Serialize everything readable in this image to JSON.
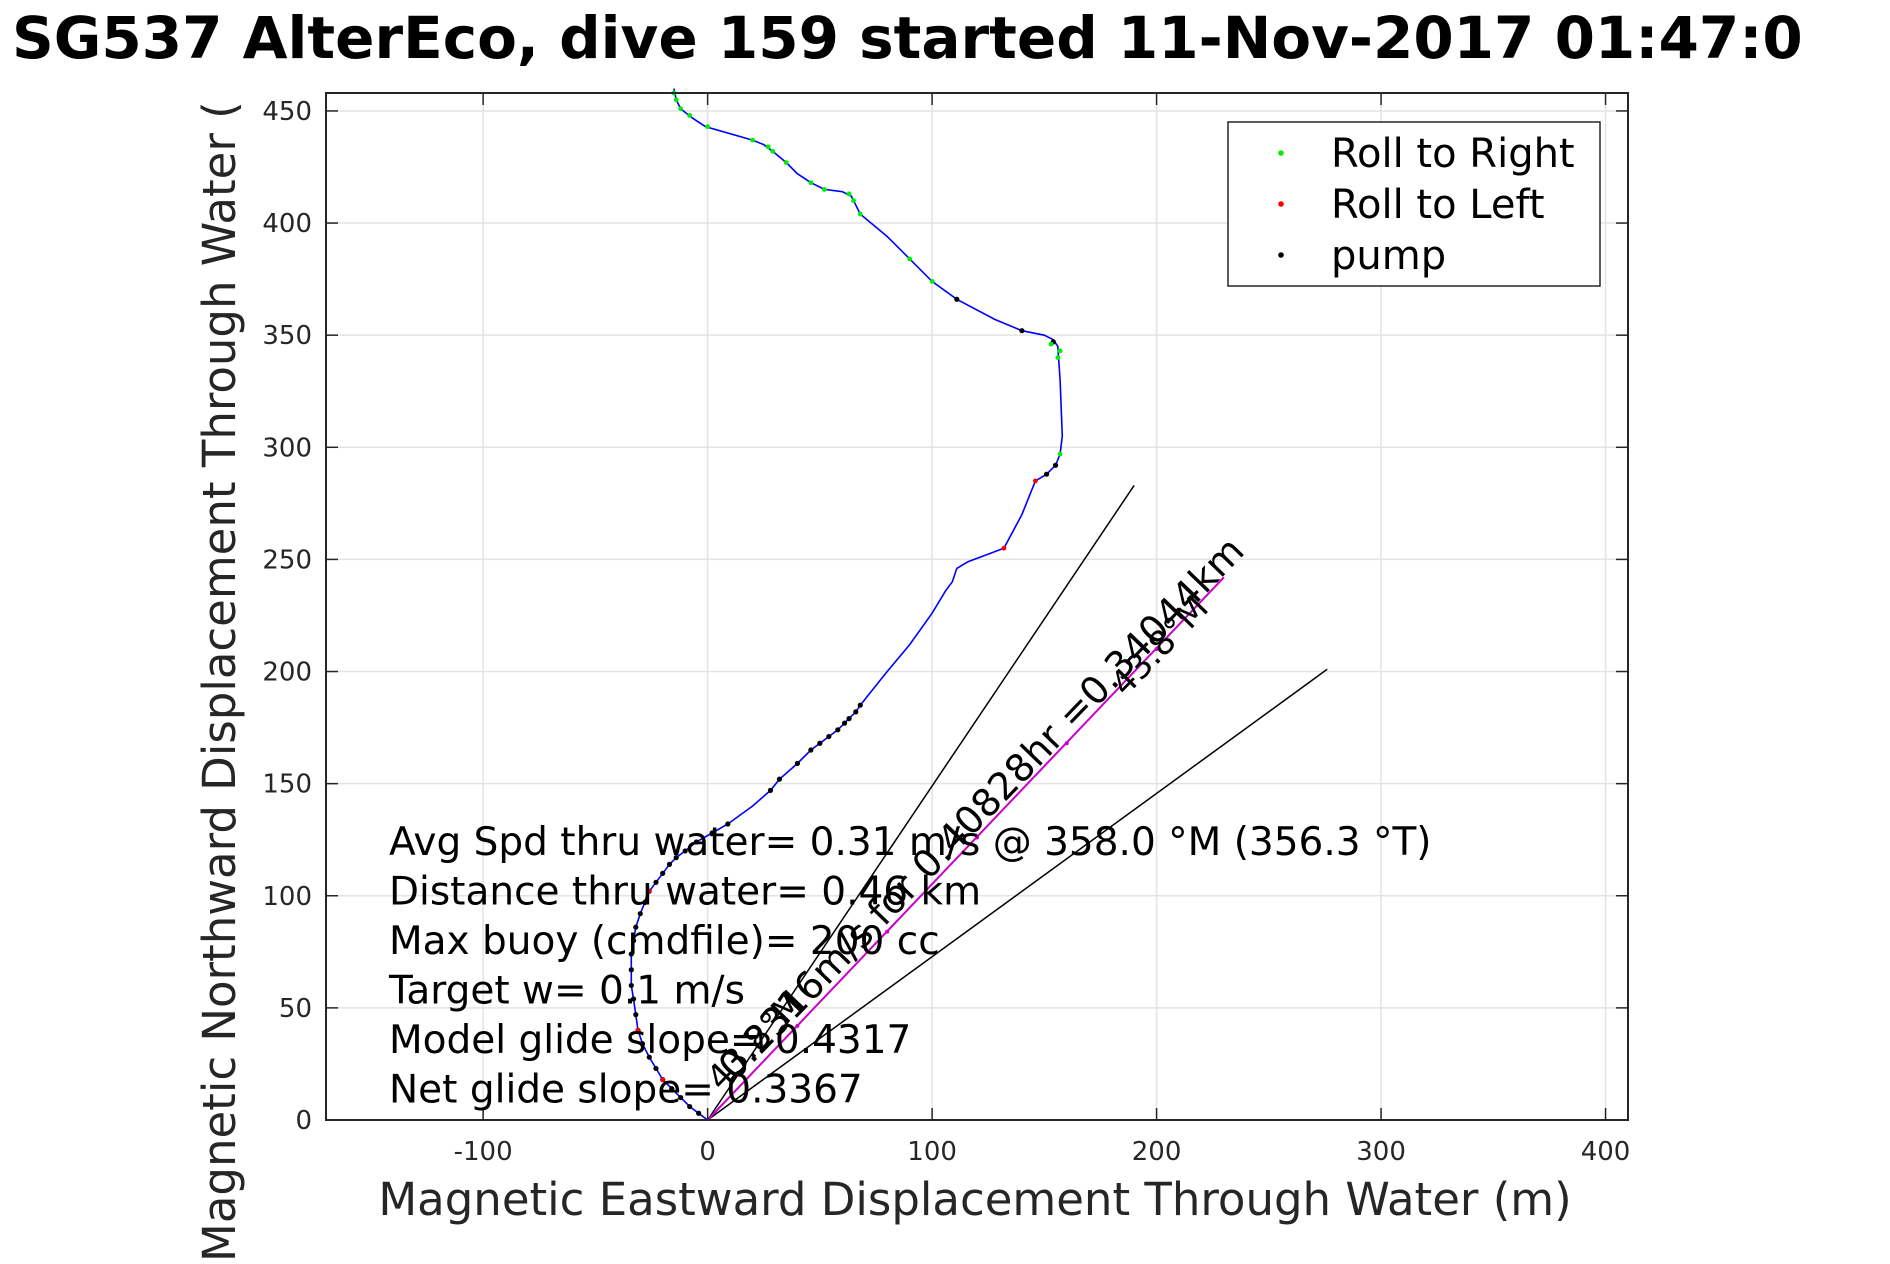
{
  "chart_data": {
    "type": "line",
    "title": "SG537 AlterEco, dive 159 started 11-Nov-2017 01:47:0",
    "xlabel": "Magnetic Eastward Displacement Through Water (m)",
    "ylabel": "Magnetic Northward Displacement Through Water (",
    "xlim": [
      -170,
      410
    ],
    "ylim": [
      0,
      458
    ],
    "xticks": [
      -100,
      0,
      100,
      200,
      300,
      400
    ],
    "xtick_labels": [
      "-100",
      "0",
      "100",
      "200",
      "300",
      "400"
    ],
    "yticks": [
      0,
      50,
      100,
      150,
      200,
      250,
      300,
      350,
      400,
      450
    ],
    "ytick_labels": [
      "0",
      "50",
      "100",
      "150",
      "200",
      "250",
      "300",
      "350",
      "400",
      "450"
    ],
    "grid": true,
    "legend_position": "top-right",
    "colors": {
      "track": "#0000ff",
      "roll_right": "#00ee00",
      "roll_left": "#ff0000",
      "pump": "#000000",
      "bisector": "#cc00cc",
      "wedge": "#000000",
      "axes": "#262626",
      "grid": "#e3e3e3"
    },
    "legend": [
      {
        "label": "Roll to Right",
        "color": "#00ee00"
      },
      {
        "label": "Roll to Left",
        "color": "#ff0000"
      },
      {
        "label": "pump",
        "color": "#000000"
      }
    ],
    "track": [
      [
        0,
        0
      ],
      [
        -4,
        3
      ],
      [
        -8,
        6
      ],
      [
        -12,
        10
      ],
      [
        -16,
        14
      ],
      [
        -20,
        18
      ],
      [
        -23,
        23
      ],
      [
        -26,
        28
      ],
      [
        -29,
        34
      ],
      [
        -31,
        40
      ],
      [
        -32,
        47
      ],
      [
        -33,
        54
      ],
      [
        -34,
        60
      ],
      [
        -34,
        67
      ],
      [
        -34,
        74
      ],
      [
        -33,
        80
      ],
      [
        -32,
        86
      ],
      [
        -30,
        92
      ],
      [
        -28,
        97
      ],
      [
        -26,
        102
      ],
      [
        -23,
        106
      ],
      [
        -20,
        110
      ],
      [
        -17,
        114
      ],
      [
        -14,
        117
      ],
      [
        -10,
        120
      ],
      [
        -5,
        124
      ],
      [
        2,
        128
      ],
      [
        9,
        132
      ],
      [
        20,
        140
      ],
      [
        28,
        147
      ],
      [
        32,
        152
      ],
      [
        40,
        159
      ],
      [
        46,
        165
      ],
      [
        50,
        168
      ],
      [
        54,
        171
      ],
      [
        58,
        174
      ],
      [
        61,
        177
      ],
      [
        63,
        179
      ],
      [
        66,
        182
      ],
      [
        68,
        185
      ],
      [
        72,
        190
      ],
      [
        80,
        200
      ],
      [
        90,
        212
      ],
      [
        100,
        226
      ],
      [
        106,
        236
      ],
      [
        109,
        240
      ],
      [
        111,
        246
      ],
      [
        116,
        249
      ],
      [
        132,
        255
      ],
      [
        140,
        270
      ],
      [
        146,
        285
      ],
      [
        151,
        288
      ],
      [
        155,
        292
      ],
      [
        157,
        297
      ],
      [
        158,
        305
      ],
      [
        157,
        330
      ],
      [
        156,
        345
      ],
      [
        154,
        348
      ],
      [
        150,
        350
      ],
      [
        140,
        352
      ],
      [
        128,
        357
      ],
      [
        111,
        366
      ],
      [
        100,
        374
      ],
      [
        90,
        384
      ],
      [
        80,
        394
      ],
      [
        68,
        404
      ],
      [
        64,
        412
      ],
      [
        60,
        414
      ],
      [
        52,
        415
      ],
      [
        46,
        418
      ],
      [
        40,
        422
      ],
      [
        35,
        427
      ],
      [
        29,
        432
      ],
      [
        25,
        435
      ],
      [
        20,
        437
      ],
      [
        -1,
        443
      ],
      [
        -7,
        447
      ],
      [
        -12,
        451
      ],
      [
        -14,
        455
      ],
      [
        -15,
        460
      ]
    ],
    "pump_points": [
      [
        2,
        128
      ],
      [
        9,
        132
      ],
      [
        28,
        147
      ],
      [
        32,
        152
      ],
      [
        40,
        159
      ],
      [
        46,
        165
      ],
      [
        50,
        168
      ],
      [
        54,
        171
      ],
      [
        58,
        174
      ],
      [
        61,
        177
      ],
      [
        63,
        179
      ],
      [
        66,
        182
      ],
      [
        68,
        185
      ],
      [
        111,
        366
      ],
      [
        140,
        352
      ],
      [
        154,
        347
      ],
      [
        155,
        292
      ],
      [
        151,
        288
      ],
      [
        -5,
        124
      ],
      [
        -10,
        120
      ],
      [
        -14,
        117
      ],
      [
        -17,
        114
      ],
      [
        -20,
        110
      ],
      [
        -23,
        106
      ],
      [
        -26,
        102
      ],
      [
        -28,
        97
      ],
      [
        -30,
        92
      ],
      [
        -32,
        86
      ],
      [
        -33,
        80
      ],
      [
        -34,
        74
      ],
      [
        -34,
        67
      ],
      [
        -34,
        60
      ],
      [
        -33,
        54
      ],
      [
        -32,
        47
      ],
      [
        -31,
        40
      ],
      [
        -29,
        34
      ],
      [
        -26,
        28
      ],
      [
        -23,
        23
      ],
      [
        -20,
        18
      ],
      [
        -16,
        14
      ],
      [
        -12,
        10
      ],
      [
        -8,
        6
      ],
      [
        -4,
        3
      ]
    ],
    "roll_left_points": [
      [
        132,
        255
      ],
      [
        146,
        285
      ],
      [
        -26,
        102
      ],
      [
        -31,
        40
      ],
      [
        -20,
        18
      ]
    ],
    "roll_right_points": [
      [
        157,
        297
      ],
      [
        156,
        340
      ],
      [
        157,
        343
      ],
      [
        100,
        374
      ],
      [
        90,
        384
      ],
      [
        68,
        404
      ],
      [
        65,
        410
      ],
      [
        63,
        413
      ],
      [
        52,
        415
      ],
      [
        46,
        418
      ],
      [
        35,
        427
      ],
      [
        29,
        432
      ],
      [
        27,
        434
      ],
      [
        20,
        437
      ],
      [
        0,
        443
      ],
      [
        -8,
        448
      ],
      [
        -12,
        451
      ],
      [
        -14,
        455
      ],
      [
        -15,
        458
      ],
      [
        153,
        346
      ]
    ],
    "bisector": {
      "from": [
        0,
        0
      ],
      "to": [
        230,
        242
      ]
    },
    "bisector_marks": [
      [
        40,
        42
      ],
      [
        80,
        84
      ],
      [
        120,
        126
      ],
      [
        160,
        168
      ],
      [
        200,
        210
      ]
    ],
    "wedge_lines": [
      {
        "from": [
          0,
          0
        ],
        "to": [
          190,
          283
        ]
      },
      {
        "from": [
          0,
          0
        ],
        "to": [
          276,
          201
        ]
      }
    ],
    "rotated_labels": [
      {
        "text": "0.2316m/s for 0.40828hr =0.34044km",
        "anchor": [
          126,
          135
        ],
        "angle": 46
      },
      {
        "text": "43.8°M",
        "anchor": [
          205,
          208
        ],
        "angle": 46
      },
      {
        "text": "43.8°M",
        "anchor": [
          25,
          32
        ],
        "angle": 46
      }
    ],
    "annotations": [
      "Avg Spd thru water=  0.31 m/s @ 358.0 °M (356.3 °T)",
      "Distance thru water=  0.46 km",
      "Max buoy (cmdfile)= 200 cc",
      "Target w= 0.1 m/s",
      "Model glide slope= 0.4317",
      "Net glide slope= 0.3367"
    ]
  }
}
